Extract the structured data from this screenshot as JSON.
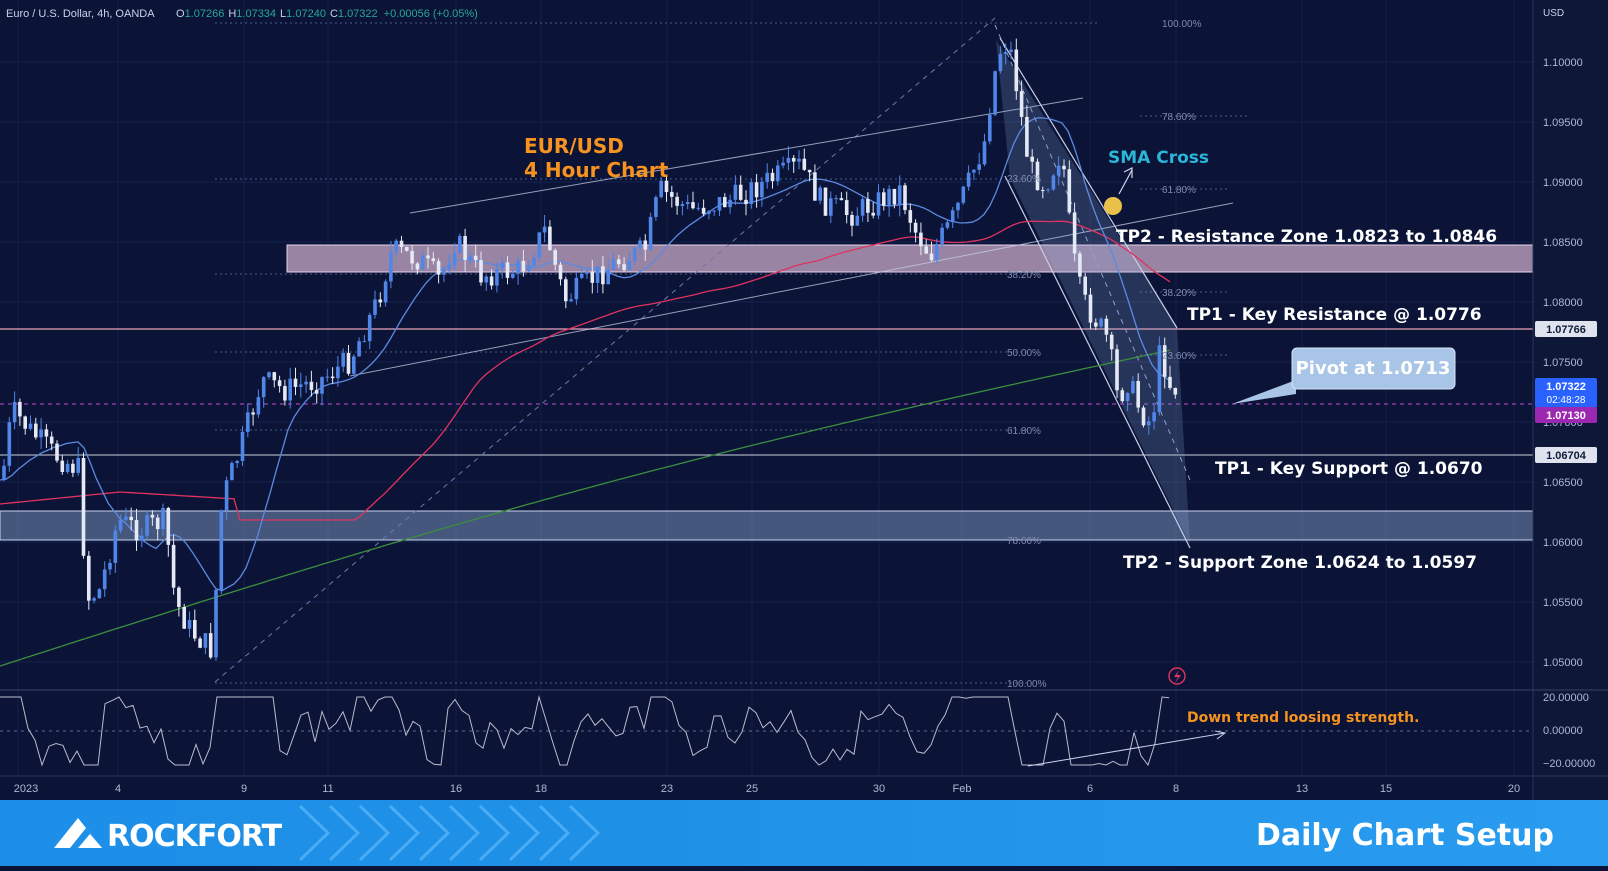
{
  "header": {
    "instrument": "Euro / U.S. Dollar, 4h, OANDA",
    "ohlc": [
      {
        "k": "O",
        "v": "1.07266"
      },
      {
        "k": "H",
        "v": "1.07334"
      },
      {
        "k": "L",
        "v": "1.07240"
      },
      {
        "k": "C",
        "v": "1.07322"
      }
    ],
    "change": "+0.00056 (+0.05%)"
  },
  "axis": {
    "currency": "USD",
    "price_ticks": [
      "1.10000",
      "1.09500",
      "1.09000",
      "1.08500",
      "1.08000",
      "1.07500",
      "1.07000",
      "1.06500",
      "1.06000",
      "1.05500",
      "1.05000"
    ],
    "rsi_ticks": [
      "20.00000",
      "0.00000",
      "−20.00000"
    ],
    "date_ticks": [
      "2023",
      "4",
      "9",
      "11",
      "16",
      "18",
      "23",
      "25",
      "30",
      "Feb",
      "6",
      "8",
      "13",
      "15",
      "20"
    ]
  },
  "price_tags": [
    {
      "label": "1.07766",
      "style": "light"
    },
    {
      "label": "1.07322",
      "sub": "02:48:28",
      "style": "blue"
    },
    {
      "label": "1.07130",
      "style": "purple"
    },
    {
      "label": "1.06704",
      "style": "light"
    }
  ],
  "annotations": {
    "title_line1": "EUR/USD",
    "title_line2": "4 Hour Chart",
    "sma_cross": "SMA Cross",
    "tp2_resistance": "TP2 - Resistance Zone 1.0823 to 1.0846",
    "tp1_resistance": "TP1 - Key Resistance @ 1.0776",
    "pivot": "Pivot at 1.0713",
    "tp1_support": "TP1 - Key Support @ 1.0670",
    "tp2_support": "TP2 - Support Zone 1.0624 to 1.0597",
    "rsi_note": "Down trend loosing strength."
  },
  "fib_left": [
    "100.00%",
    "78.60%",
    "61.80%",
    "50.00%",
    "38.20%",
    "23.60%"
  ],
  "fib_right": [
    "100.00%",
    "78.60%",
    "61.80%",
    "50.00%",
    "38.20%",
    "23.60%",
    "61.80%",
    "38.20%",
    "23.60%"
  ],
  "footer": {
    "brand": "ROCKFORT",
    "title": "Daily Chart Setup"
  },
  "colors": {
    "background": "#0b1437",
    "zone": "#c9a9c9",
    "sma_fast": "#5b8ae0",
    "sma_mid": "#e0335f",
    "sma_slow": "#3b8f3e",
    "accent_orange": "#f7931e",
    "accent_cyan": "#29b6d9",
    "footer_blue": "#1e90e6"
  },
  "chart_data": {
    "type": "candlestick",
    "ylim": [
      1.0465,
      1.1035
    ],
    "levels": {
      "key_resistance": 1.0776,
      "pivot": 1.0713,
      "key_support": 1.067,
      "resistance_zone": [
        1.0823,
        1.0846
      ],
      "support_zone": [
        1.0597,
        1.0624
      ]
    }
  }
}
